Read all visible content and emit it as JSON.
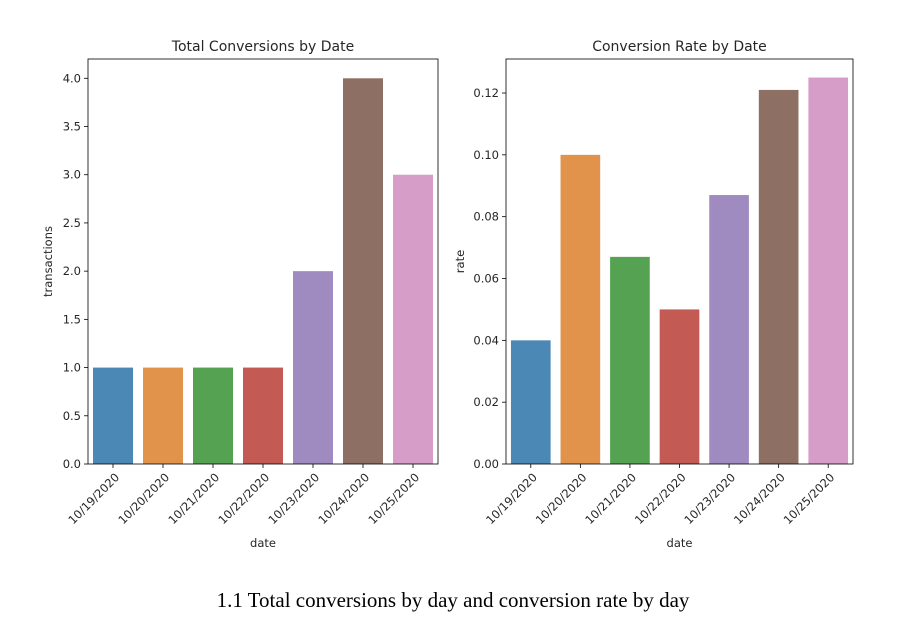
{
  "caption": "1.1 Total conversions by day and conversion rate by day",
  "chart_data": [
    {
      "type": "bar",
      "title": "Total Conversions by Date",
      "xlabel": "date",
      "ylabel": "transactions",
      "categories": [
        "10/19/2020",
        "10/20/2020",
        "10/21/2020",
        "10/22/2020",
        "10/23/2020",
        "10/24/2020",
        "10/25/2020"
      ],
      "values": [
        1,
        1,
        1,
        1,
        2,
        4,
        3
      ],
      "ylim": [
        0,
        4.2
      ],
      "yticks": [
        0.0,
        0.5,
        1.0,
        1.5,
        2.0,
        2.5,
        3.0,
        3.5,
        4.0
      ],
      "ytick_labels": [
        "0.0",
        "0.5",
        "1.0",
        "1.5",
        "2.0",
        "2.5",
        "3.0",
        "3.5",
        "4.0"
      ],
      "colors": [
        "#4c88b6",
        "#e1924b",
        "#55a252",
        "#c35a53",
        "#a08bc1",
        "#8e6f64",
        "#d69dc8"
      ],
      "grid": false
    },
    {
      "type": "bar",
      "title": "Conversion Rate by Date",
      "xlabel": "date",
      "ylabel": "rate",
      "categories": [
        "10/19/2020",
        "10/20/2020",
        "10/21/2020",
        "10/22/2020",
        "10/23/2020",
        "10/24/2020",
        "10/25/2020"
      ],
      "values": [
        0.04,
        0.1,
        0.067,
        0.05,
        0.087,
        0.121,
        0.125
      ],
      "ylim": [
        0,
        0.131
      ],
      "yticks": [
        0.0,
        0.02,
        0.04,
        0.06,
        0.08,
        0.1,
        0.12
      ],
      "ytick_labels": [
        "0.00",
        "0.02",
        "0.04",
        "0.06",
        "0.08",
        "0.10",
        "0.12"
      ],
      "colors": [
        "#4c88b6",
        "#e1924b",
        "#55a252",
        "#c35a53",
        "#a08bc1",
        "#8e6f64",
        "#d69dc8"
      ],
      "grid": false
    }
  ]
}
